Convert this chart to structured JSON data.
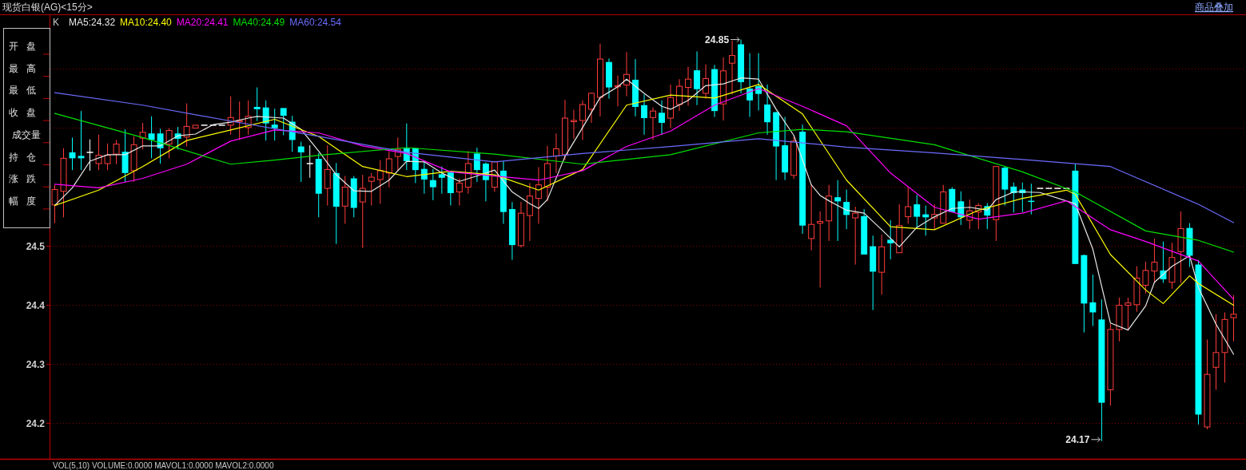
{
  "chart_data": {
    "type": "candlestick",
    "title": "现货白银(AG)<15分>",
    "categories": [
      null,
      null,
      null,
      null,
      null,
      null,
      null,
      null,
      null,
      null,
      null,
      null,
      null,
      null,
      null,
      null,
      null,
      null,
      null,
      null,
      null,
      null,
      null,
      null,
      null,
      null,
      null,
      null,
      null,
      null,
      null,
      null,
      null,
      null,
      null,
      null,
      null,
      null,
      null,
      null,
      null,
      null,
      null,
      null,
      null,
      null,
      null,
      null,
      null,
      null,
      null,
      null,
      null,
      null,
      null,
      null,
      null,
      null,
      null,
      null,
      null,
      null,
      null,
      null,
      null,
      null,
      null,
      null,
      null,
      null,
      null,
      null,
      null,
      null,
      null,
      null,
      null,
      null,
      null,
      null,
      null,
      null,
      null,
      null,
      null,
      null,
      null,
      null,
      null,
      null,
      null,
      null,
      null,
      null,
      null,
      null,
      null,
      null,
      null,
      null,
      null,
      null,
      null,
      null,
      null,
      null,
      null,
      null,
      null,
      null,
      null,
      null,
      null,
      null,
      null,
      null,
      null,
      null,
      null,
      null,
      null,
      null,
      null,
      null,
      null,
      null,
      null,
      null,
      null,
      null,
      null,
      null,
      null,
      null,
      null
    ],
    "ohlc": [
      [
        24.57,
        24.604,
        24.539,
        24.596
      ],
      [
        24.593,
        24.666,
        24.549,
        24.649
      ],
      [
        24.659,
        24.684,
        24.629,
        24.649
      ],
      [
        24.653,
        24.729,
        24.629,
        24.649
      ],
      [
        24.659,
        24.681,
        24.628,
        24.659
      ],
      [
        24.64,
        24.689,
        24.629,
        24.654
      ],
      [
        24.64,
        24.674,
        24.629,
        24.654
      ],
      [
        24.656,
        24.68,
        24.639,
        24.673
      ],
      [
        24.66,
        24.698,
        24.609,
        24.624
      ],
      [
        24.628,
        24.686,
        24.609,
        24.672
      ],
      [
        24.683,
        24.709,
        24.664,
        24.693
      ],
      [
        24.691,
        24.72,
        24.649,
        24.68
      ],
      [
        24.691,
        24.699,
        24.64,
        24.666
      ],
      [
        24.673,
        24.7,
        24.649,
        24.696
      ],
      [
        24.691,
        24.702,
        24.664,
        24.682
      ],
      [
        24.685,
        24.742,
        24.669,
        24.703
      ],
      [
        24.7,
        24.705,
        24.7,
        24.705
      ],
      [
        24.705,
        24.705,
        24.705,
        24.705
      ],
      [
        24.705,
        24.705,
        24.705,
        24.705
      ],
      [
        24.705,
        24.705,
        24.705,
        24.705
      ],
      [
        24.705,
        24.754,
        24.689,
        24.718
      ],
      [
        24.711,
        24.745,
        24.68,
        24.713
      ],
      [
        24.701,
        24.747,
        24.689,
        24.72
      ],
      [
        24.736,
        24.769,
        24.712,
        24.732
      ],
      [
        24.735,
        24.747,
        24.679,
        24.708
      ],
      [
        24.706,
        24.733,
        24.679,
        24.7
      ],
      [
        24.734,
        24.734,
        24.688,
        24.721
      ],
      [
        24.711,
        24.721,
        24.66,
        24.68
      ],
      [
        24.669,
        24.677,
        24.609,
        24.659
      ],
      [
        24.64,
        24.671,
        24.616,
        24.64
      ],
      [
        24.648,
        24.658,
        24.549,
        24.589
      ],
      [
        24.598,
        24.671,
        24.569,
        24.63
      ],
      [
        24.624,
        24.641,
        24.504,
        24.567
      ],
      [
        24.568,
        24.619,
        24.538,
        24.6
      ],
      [
        24.615,
        24.619,
        24.549,
        24.565
      ],
      [
        24.575,
        24.621,
        24.497,
        24.598
      ],
      [
        24.61,
        24.624,
        24.569,
        24.617
      ],
      [
        24.613,
        24.646,
        24.572,
        24.628
      ],
      [
        24.624,
        24.661,
        24.6,
        24.648
      ],
      [
        24.652,
        24.684,
        24.629,
        24.664
      ],
      [
        24.666,
        24.708,
        24.629,
        24.644
      ],
      [
        24.666,
        24.667,
        24.607,
        24.629
      ],
      [
        24.631,
        24.644,
        24.589,
        24.613
      ],
      [
        24.612,
        24.631,
        24.578,
        24.6
      ],
      [
        24.622,
        24.635,
        24.589,
        24.616
      ],
      [
        24.625,
        24.626,
        24.569,
        24.59
      ],
      [
        24.592,
        24.615,
        24.569,
        24.607
      ],
      [
        24.6,
        24.661,
        24.589,
        24.64
      ],
      [
        24.657,
        24.667,
        24.609,
        24.629
      ],
      [
        24.64,
        24.642,
        24.576,
        24.612
      ],
      [
        24.6,
        24.644,
        24.592,
        24.643
      ],
      [
        24.628,
        24.644,
        24.538,
        24.558
      ],
      [
        24.563,
        24.575,
        24.477,
        24.502
      ],
      [
        24.501,
        24.575,
        24.498,
        24.556
      ],
      [
        24.552,
        24.607,
        24.509,
        24.585
      ],
      [
        24.581,
        24.634,
        24.538,
        24.604
      ],
      [
        24.6,
        24.67,
        24.576,
        24.64
      ],
      [
        24.653,
        24.691,
        24.624,
        24.665
      ],
      [
        24.655,
        24.748,
        24.646,
        24.717
      ],
      [
        24.711,
        24.731,
        24.682,
        24.713
      ],
      [
        24.713,
        24.747,
        24.68,
        24.74
      ],
      [
        24.732,
        24.76,
        24.709,
        24.759
      ],
      [
        24.752,
        24.843,
        24.72,
        24.817
      ],
      [
        24.812,
        24.818,
        24.75,
        24.769
      ],
      [
        24.77,
        24.789,
        24.737,
        24.772
      ],
      [
        24.773,
        24.829,
        24.754,
        24.791
      ],
      [
        24.782,
        24.817,
        24.72,
        24.736
      ],
      [
        24.739,
        24.757,
        24.689,
        24.717
      ],
      [
        24.718,
        24.735,
        24.68,
        24.729
      ],
      [
        24.726,
        24.747,
        24.689,
        24.709
      ],
      [
        24.717,
        24.774,
        24.7,
        24.752
      ],
      [
        24.74,
        24.783,
        24.729,
        24.771
      ],
      [
        24.769,
        24.804,
        24.738,
        24.783
      ],
      [
        24.798,
        24.83,
        24.739,
        24.766
      ],
      [
        24.759,
        24.808,
        24.75,
        24.784
      ],
      [
        24.8,
        24.807,
        24.719,
        24.729
      ],
      [
        24.741,
        24.82,
        24.713,
        24.797
      ],
      [
        24.81,
        24.848,
        24.757,
        24.823
      ],
      [
        24.842,
        24.85,
        24.759,
        24.778
      ],
      [
        24.767,
        24.827,
        24.719,
        24.747
      ],
      [
        24.771,
        24.827,
        24.73,
        24.758
      ],
      [
        24.74,
        24.774,
        24.689,
        24.71
      ],
      [
        24.727,
        24.728,
        24.612,
        24.669
      ],
      [
        24.671,
        24.719,
        24.612,
        24.625
      ],
      [
        24.62,
        24.685,
        24.614,
        24.678
      ],
      [
        24.694,
        24.706,
        24.521,
        24.535
      ],
      [
        24.513,
        24.605,
        24.493,
        24.537
      ],
      [
        24.539,
        24.559,
        24.43,
        24.542
      ],
      [
        24.543,
        24.604,
        24.509,
        24.585
      ],
      [
        24.583,
        24.612,
        24.509,
        24.576
      ],
      [
        24.575,
        24.596,
        24.529,
        24.553
      ],
      [
        24.548,
        24.567,
        24.469,
        24.556
      ],
      [
        24.551,
        24.563,
        24.486,
        24.486
      ],
      [
        24.5,
        24.518,
        24.392,
        24.457
      ],
      [
        24.456,
        24.52,
        24.418,
        24.499
      ],
      [
        24.511,
        24.544,
        24.478,
        24.505
      ],
      [
        24.489,
        24.571,
        24.489,
        24.535
      ],
      [
        24.55,
        24.6,
        24.538,
        24.567
      ],
      [
        24.571,
        24.587,
        24.529,
        24.55
      ],
      [
        24.554,
        24.569,
        24.518,
        24.549
      ],
      [
        24.548,
        24.571,
        24.529,
        24.554
      ],
      [
        24.539,
        24.604,
        24.539,
        24.592
      ],
      [
        24.597,
        24.6,
        24.557,
        24.558
      ],
      [
        24.576,
        24.593,
        24.536,
        24.549
      ],
      [
        24.544,
        24.579,
        24.529,
        24.56
      ],
      [
        24.558,
        24.573,
        24.529,
        24.569
      ],
      [
        24.568,
        24.573,
        24.529,
        24.552
      ],
      [
        24.545,
        24.636,
        24.509,
        24.635
      ],
      [
        24.633,
        24.636,
        24.569,
        24.596
      ],
      [
        24.601,
        24.608,
        24.557,
        24.59
      ],
      [
        24.596,
        24.608,
        24.558,
        24.59
      ],
      [
        24.577,
        24.606,
        24.554,
        24.575
      ],
      [
        24.598,
        24.598,
        24.598,
        24.598
      ],
      [
        24.598,
        24.598,
        24.598,
        24.598
      ],
      [
        24.598,
        24.598,
        24.598,
        24.598
      ],
      [
        24.598,
        24.598,
        24.598,
        24.598
      ],
      [
        24.628,
        24.639,
        24.47,
        24.47
      ],
      [
        24.485,
        24.486,
        24.354,
        24.403
      ],
      [
        24.405,
        24.452,
        24.365,
        24.388
      ],
      [
        24.376,
        24.41,
        24.17,
        24.235
      ],
      [
        24.257,
        24.369,
        24.23,
        24.359
      ],
      [
        24.359,
        24.413,
        24.339,
        24.4
      ],
      [
        24.4,
        24.413,
        24.359,
        24.404
      ],
      [
        24.401,
        24.466,
        24.389,
        24.446
      ],
      [
        24.434,
        24.474,
        24.42,
        24.459
      ],
      [
        24.458,
        24.513,
        24.438,
        24.473
      ],
      [
        24.459,
        24.508,
        24.438,
        24.444
      ],
      [
        24.439,
        24.506,
        24.428,
        24.481
      ],
      [
        24.491,
        24.559,
        24.438,
        24.53
      ],
      [
        24.531,
        24.539,
        24.465,
        24.484
      ],
      [
        24.469,
        24.477,
        24.198,
        24.215
      ],
      [
        24.194,
        24.342,
        24.19,
        24.283
      ],
      [
        24.295,
        24.385,
        24.257,
        24.32
      ],
      [
        24.32,
        24.388,
        24.269,
        24.376
      ],
      [
        24.379,
        24.417,
        24.339,
        24.385
      ]
    ],
    "series": [
      {
        "type": "line",
        "name": "MA5:24.32",
        "color": "#e8e8e8",
        "values": [
          24.569,
          null,
          24.599,
          null,
          24.644,
          null,
          24.655,
          null,
          24.655,
          null,
          24.67,
          null,
          24.67,
          null,
          24.687,
          null,
          24.69,
          null,
          24.706,
          null,
          24.71,
          null,
          24.717,
          24.72,
          null,
          null,
          24.717,
          null,
          24.698,
          null,
          24.661,
          null,
          24.621,
          null,
          24.594,
          null,
          24.593,
          null,
          24.612,
          null,
          24.644,
          null,
          24.643,
          null,
          24.624,
          null,
          24.61,
          null,
          24.619,
          null,
          24.629,
          null,
          24.592,
          null,
          24.572,
          24.564,
          24.579,
          null,
          24.652,
          null,
          24.701,
          null,
          24.752,
          null,
          24.77,
          24.783,
          null,
          24.759,
          null,
          24.737,
          24.732,
          null,
          24.747,
          null,
          24.772,
          null,
          24.775,
          null,
          24.785,
          null,
          24.783,
          null,
          24.732,
          null,
          24.688,
          null,
          24.604,
          24.586,
          24.577,
          null,
          24.561,
          null,
          24.556,
          null,
          24.528,
          null,
          24.499,
          null,
          24.532,
          null,
          24.55,
          null,
          24.564,
          null,
          24.566,
          null,
          24.561,
          24.579,
          null,
          24.592,
          24.592,
          null,
          24.591,
          null,
          null,
          null,
          24.572,
          null,
          24.495,
          null,
          24.37,
          null,
          24.358,
          null,
          24.399,
          24.439,
          null,
          24.466,
          null,
          24.484,
          24.43,
          null,
          24.368,
          null,
          24.317
        ]
      },
      {
        "type": "line",
        "name": "MA10:24.40",
        "color": "#ffff00",
        "values": [
          24.569,
          null,
          null,
          null,
          null,
          24.595,
          null,
          null,
          null,
          null,
          24.635,
          null,
          null,
          null,
          null,
          24.679,
          null,
          null,
          null,
          null,
          24.697,
          null,
          null,
          null,
          null,
          24.715,
          null,
          null,
          null,
          null,
          24.686,
          null,
          null,
          null,
          null,
          24.635,
          null,
          null,
          null,
          null,
          24.618,
          null,
          null,
          null,
          null,
          24.627,
          null,
          null,
          null,
          null,
          24.621,
          null,
          null,
          null,
          null,
          24.595,
          null,
          null,
          null,
          null,
          24.63,
          null,
          null,
          null,
          null,
          24.739,
          null,
          null,
          null,
          null,
          24.756,
          null,
          null,
          null,
          null,
          24.751,
          null,
          null,
          null,
          null,
          24.774,
          null,
          null,
          null,
          null,
          24.724,
          null,
          null,
          null,
          null,
          24.612,
          null,
          null,
          null,
          null,
          24.533,
          null,
          null,
          null,
          null,
          24.528,
          null,
          null,
          null,
          null,
          24.561,
          null,
          null,
          null,
          null,
          24.581,
          null,
          null,
          null,
          null,
          24.595,
          24.588,
          null,
          null,
          null,
          24.486,
          null,
          null,
          null,
          24.426,
          null,
          24.403,
          null,
          null,
          24.45,
          24.437,
          null,
          null,
          null,
          24.4
        ]
      },
      {
        "type": "line",
        "name": "MA20:24.41",
        "color": "#ff00ff",
        "values": [
          24.605,
          null,
          null,
          null,
          null,
          24.599,
          null,
          null,
          null,
          null,
          24.615,
          null,
          null,
          null,
          null,
          24.639,
          null,
          null,
          null,
          null,
          24.678,
          null,
          null,
          null,
          null,
          24.697,
          null,
          null,
          null,
          null,
          24.692,
          null,
          null,
          null,
          null,
          24.67,
          null,
          null,
          null,
          null,
          24.657,
          null,
          null,
          null,
          null,
          24.626,
          null,
          null,
          null,
          null,
          24.619,
          null,
          null,
          null,
          null,
          24.612,
          null,
          null,
          null,
          null,
          24.628,
          null,
          null,
          null,
          null,
          24.669,
          null,
          null,
          null,
          null,
          24.695,
          null,
          null,
          null,
          null,
          24.739,
          null,
          null,
          null,
          null,
          24.767,
          null,
          null,
          null,
          null,
          24.737,
          null,
          null,
          null,
          null,
          24.704,
          null,
          null,
          null,
          null,
          24.624,
          null,
          null,
          null,
          null,
          24.566,
          null,
          null,
          null,
          null,
          24.546,
          null,
          null,
          null,
          null,
          24.556,
          null,
          null,
          null,
          null,
          24.577,
          null,
          null,
          null,
          null,
          24.528,
          null,
          null,
          null,
          24.508,
          null,
          null,
          null,
          null,
          null,
          24.475,
          null,
          null,
          null,
          24.41
        ]
      },
      {
        "type": "line",
        "name": "MA40:24.49",
        "color": "#00e000",
        "values": [
          24.725,
          null,
          null,
          null,
          null,
          null,
          null,
          null,
          null,
          null,
          24.684,
          null,
          null,
          null,
          null,
          null,
          null,
          null,
          null,
          null,
          24.639,
          null,
          null,
          null,
          null,
          24.646,
          null,
          null,
          null,
          null,
          24.654,
          null,
          null,
          null,
          null,
          null,
          null,
          null,
          null,
          null,
          24.667,
          null,
          null,
          null,
          null,
          null,
          null,
          null,
          null,
          null,
          24.656,
          null,
          null,
          null,
          null,
          null,
          null,
          null,
          null,
          null,
          24.639,
          null,
          null,
          null,
          null,
          null,
          null,
          null,
          null,
          null,
          24.655,
          null,
          null,
          null,
          null,
          null,
          null,
          null,
          null,
          null,
          24.692,
          null,
          null,
          null,
          null,
          24.698,
          null,
          null,
          null,
          null,
          24.694,
          null,
          null,
          null,
          null,
          null,
          null,
          null,
          null,
          null,
          24.672,
          null,
          null,
          null,
          null,
          null,
          null,
          null,
          null,
          null,
          24.626,
          null,
          null,
          null,
          null,
          null,
          24.592,
          null,
          null,
          null,
          null,
          null,
          null,
          null,
          24.526,
          null,
          null,
          null,
          null,
          null,
          24.51,
          null,
          null,
          null,
          24.49
        ]
      },
      {
        "type": "line",
        "name": "MA60:24.54",
        "color": "#6c6cff",
        "values": [
          24.76,
          null,
          null,
          null,
          null,
          null,
          null,
          null,
          null,
          null,
          24.739,
          null,
          null,
          null,
          null,
          null,
          null,
          null,
          null,
          null,
          24.712,
          null,
          null,
          null,
          null,
          null,
          null,
          null,
          null,
          null,
          24.686,
          null,
          null,
          null,
          null,
          null,
          null,
          null,
          null,
          null,
          24.659,
          null,
          null,
          null,
          null,
          null,
          null,
          null,
          null,
          null,
          24.643,
          null,
          null,
          null,
          null,
          null,
          null,
          null,
          null,
          null,
          24.657,
          null,
          null,
          null,
          null,
          null,
          null,
          null,
          null,
          null,
          24.669,
          null,
          null,
          null,
          null,
          null,
          null,
          null,
          null,
          null,
          24.682,
          null,
          null,
          null,
          null,
          null,
          null,
          null,
          null,
          null,
          24.668,
          null,
          null,
          null,
          null,
          null,
          null,
          null,
          null,
          null,
          24.658,
          null,
          null,
          null,
          null,
          null,
          null,
          null,
          null,
          null,
          24.647,
          null,
          null,
          null,
          null,
          null,
          null,
          null,
          null,
          null,
          24.635,
          null,
          null,
          null,
          null,
          null,
          null,
          null,
          null,
          null,
          24.571,
          null,
          null,
          null,
          24.54
        ]
      }
    ],
    "ylim": [
      24.14,
      24.89
    ],
    "yticks": [
      24.2,
      24.3,
      24.4,
      24.5,
      {
        "value": 24.6,
        "label": null
      },
      {
        "value": 24.7,
        "label": null
      },
      {
        "value": 24.8,
        "label": null
      }
    ],
    "grid": "y",
    "legend": "top left",
    "annotations": [
      "商品叠加",
      "K",
      "开盘",
      "最高",
      "最低",
      "收盘",
      "成交量",
      "持仓",
      "涨跌",
      "幅度",
      "VOL(5,10) VOLUME:0.0000 MAVOL1:0.0000 MAVOL2:0.0000",
      "24.85",
      "24.17"
    ]
  }
}
